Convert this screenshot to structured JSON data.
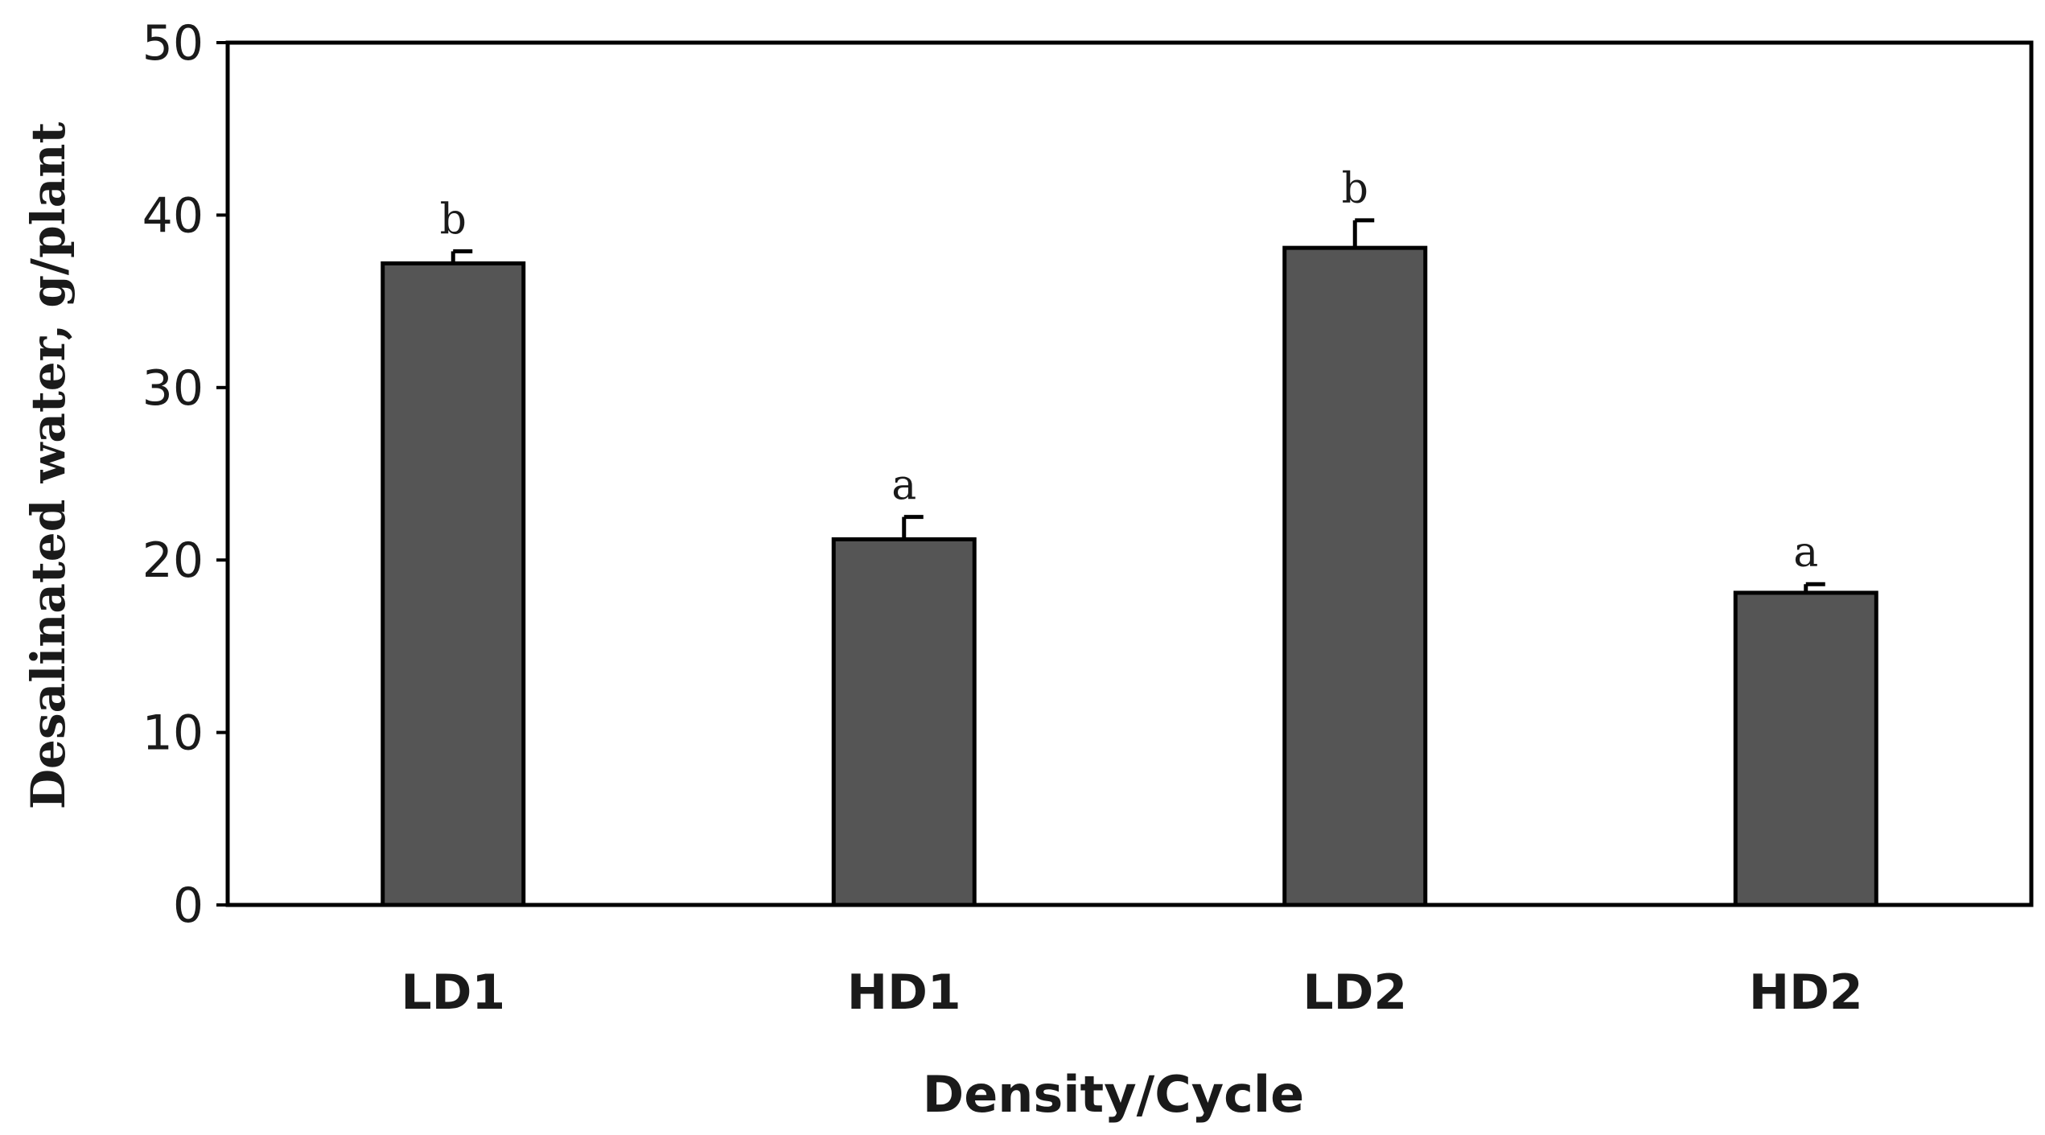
{
  "chart_data": {
    "type": "bar",
    "title": "",
    "xlabel": "Density/Cycle",
    "ylabel": "Desalinated water, g/plant",
    "categories": [
      "LD1",
      "HD1",
      "LD2",
      "HD2"
    ],
    "values": [
      37.2,
      21.2,
      38.1,
      18.1
    ],
    "errors": [
      0.7,
      1.3,
      1.6,
      0.5
    ],
    "significance": [
      "b",
      "a",
      "b",
      "a"
    ],
    "ylim": [
      0,
      50
    ],
    "yticks": [
      0,
      10,
      20,
      30,
      40,
      50
    ],
    "yticks_labels": [
      "0",
      "10",
      "20",
      "30",
      "40",
      "50"
    ],
    "grid": false,
    "bar_color": "#555555",
    "bar_edge_color": "#000000"
  }
}
